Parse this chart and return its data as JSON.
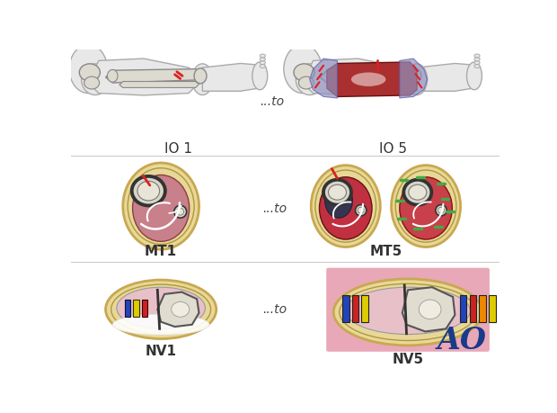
{
  "background_color": "#ffffff",
  "row_divider_color": "#cccccc",
  "label_IO1": "IO 1",
  "label_IO5": "IO 5",
  "label_MT1": "MT1",
  "label_MT5": "MT5",
  "label_NV1": "NV1",
  "label_NV5": "NV5",
  "label_to": "...to",
  "skin_light": "#e8e8e8",
  "skin_outline": "#aaaaaa",
  "bone_fill": "#dddad0",
  "bone_edge": "#888888",
  "muscle_red": "#c8404a",
  "muscle_pink": "#c8808a",
  "fascia_yellow": "#e8d898",
  "fascia_edge": "#c8a850",
  "necrosis_dark": "#383858",
  "red_mark": "#dd2020",
  "green_mark": "#44aa44",
  "blue_soft": "#8090c8",
  "nv_blue": "#2244bb",
  "nv_red": "#cc2222",
  "nv_yellow": "#ddcc00",
  "nv_orange": "#ee8800",
  "nv_pink_bg": "#e8a0b0",
  "ao_blue": "#1a3a8a",
  "white": "#ffffff",
  "dark_outline": "#333333",
  "gray_bone": "#c8c5b8"
}
